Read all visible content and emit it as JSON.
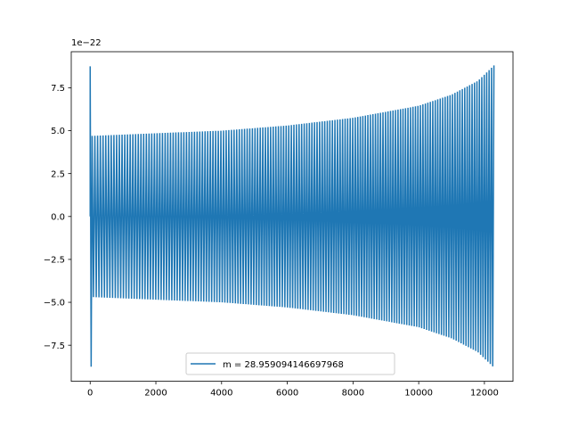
{
  "chart_data": {
    "type": "line",
    "title": "",
    "xlabel": "",
    "ylabel": "",
    "y_offset_label": "1e−22",
    "xlim": [
      -576,
      12870
    ],
    "ylim": [
      -9.6,
      9.6
    ],
    "x_ticks": [
      {
        "value": 0,
        "label": "0"
      },
      {
        "value": 2000,
        "label": "2000"
      },
      {
        "value": 4000,
        "label": "4000"
      },
      {
        "value": 6000,
        "label": "6000"
      },
      {
        "value": 8000,
        "label": "8000"
      },
      {
        "value": 10000,
        "label": "10000"
      },
      {
        "value": 12000,
        "label": "12000"
      }
    ],
    "y_ticks": [
      {
        "value": 7.5,
        "label": "7.5"
      },
      {
        "value": 5.0,
        "label": "5.0"
      },
      {
        "value": 2.5,
        "label": "2.5"
      },
      {
        "value": 0.0,
        "label": "0.0"
      },
      {
        "value": -2.5,
        "label": "−2.5"
      },
      {
        "value": -5.0,
        "label": "−5.0"
      },
      {
        "value": -7.5,
        "label": "−7.5"
      }
    ],
    "grid": false,
    "legend_position": "lower-center",
    "series": [
      {
        "name": "m = 28.959094146697968",
        "color": "#1f77b4",
        "x_start": 0,
        "x_end": 12290,
        "cycles": 156,
        "initial_spike": 8.75,
        "envelope": [
          [
            100,
            4.7
          ],
          [
            2000,
            4.85
          ],
          [
            4000,
            5.0
          ],
          [
            6000,
            5.3
          ],
          [
            8000,
            5.75
          ],
          [
            10000,
            6.45
          ],
          [
            11000,
            7.1
          ],
          [
            11800,
            7.9
          ],
          [
            12290,
            8.8
          ]
        ]
      }
    ]
  }
}
